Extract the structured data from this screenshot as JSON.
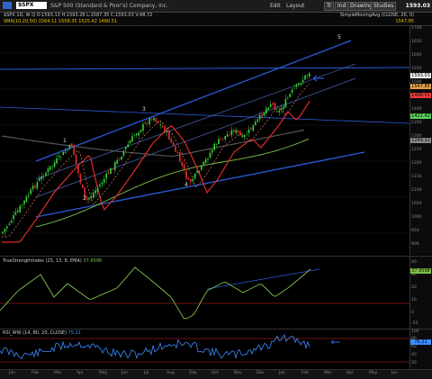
{
  "toolbar": {
    "symbol": "$SPX",
    "company": "S&P 500 (Standard & Poor's) Company, Inc.",
    "menus": [
      "Edit",
      "Layout",
      "View",
      "Draw",
      "Tools"
    ],
    "buttons": [
      "Tr",
      "Ind",
      "Drawings",
      "Studies"
    ],
    "last_price": "1593.03"
  },
  "subtitle": {
    "line1": "$SPX 1D,  W  Q  O:1593.13  H:1593.26  L:1587.35  C:1593.03  V:48.72",
    "line2": "SMA(10,20,50) 1564.11 1558.35 1525.42 1480.51",
    "right1": "SimpleMovingAvg (CLOSE, 20, 0)",
    "right2": "1547.85"
  },
  "main_chart": {
    "wave_labels": [
      "1",
      "2",
      "3",
      "4",
      "5"
    ],
    "price_ticks": [
      "1700",
      "1650",
      "1600",
      "1550",
      "1500",
      "1450",
      "1400",
      "1350",
      "1300",
      "1250",
      "1200",
      "1150",
      "1100",
      "1050",
      "1000",
      "950",
      "900"
    ],
    "price_tags": [
      {
        "text": "1593.03",
        "color": "#f2f2f2"
      },
      {
        "text": "1547.85",
        "color": "#e3a24a"
      },
      {
        "text": "1498.01",
        "color": "#ff3a3a"
      },
      {
        "text": "1422.42",
        "color": "#5ad35a"
      },
      {
        "text": "1249.11",
        "color": "#8a8a8a"
      }
    ]
  },
  "stoch_panel": {
    "title": "TrueStrengthIndex (25, 13, 8, EMA)",
    "value": "37.9598",
    "ticks": [
      "40",
      "30",
      "20",
      "10",
      "0",
      "-10"
    ],
    "tag": "37.9598"
  },
  "rsi_panel": {
    "title": "RSI_WW (14, 80, 20, CLOSE)",
    "value": "75.21",
    "ticks": [
      "100",
      "80",
      "60",
      "40",
      "20"
    ],
    "tag": "75.21"
  },
  "months": [
    "Jan",
    "Feb",
    "Mar",
    "Apr",
    "May",
    "Jun",
    "Jul",
    "Aug",
    "Sep",
    "Oct",
    "Nov",
    "Dec",
    "Jan",
    "Feb",
    "Mar",
    "Apr",
    "May",
    "Jun"
  ],
  "colors": {
    "channel_blue": "#2a5bd8",
    "bull": "#3ad13a",
    "bear": "#e23030",
    "ma_red": "#e02a2a",
    "ma_green": "#7fc24a",
    "ma_black": "#555555",
    "rsi": "#3a8cff",
    "stoch": "#7fc24a"
  }
}
